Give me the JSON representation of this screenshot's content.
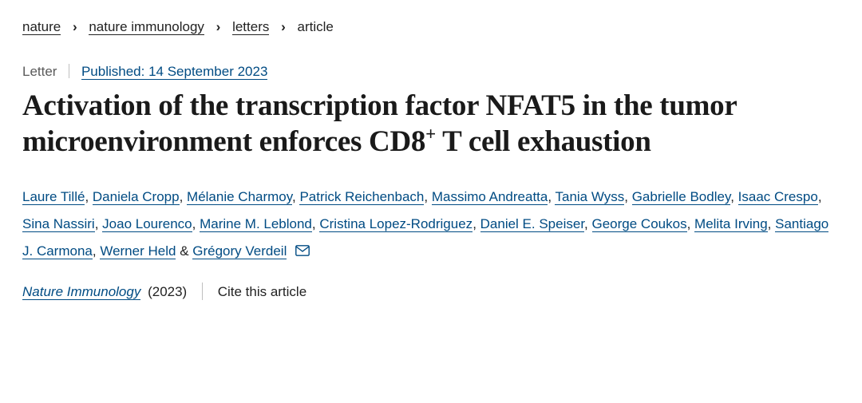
{
  "breadcrumb": {
    "items": [
      {
        "label": "nature",
        "link": true
      },
      {
        "label": "nature immunology",
        "link": true
      },
      {
        "label": "letters",
        "link": true
      },
      {
        "label": "article",
        "link": false
      }
    ]
  },
  "meta": {
    "category": "Letter",
    "published_label": "Published: 14 September 2023"
  },
  "title": {
    "pre": "Activation of the transcription factor NFAT5 in the tumor microenvironment enforces CD8",
    "sup": "+",
    "post": " T cell exhaustion"
  },
  "authors": [
    "Laure Tillé",
    "Daniela Cropp",
    "Mélanie Charmoy",
    "Patrick Reichenbach",
    "Massimo Andreatta",
    "Tania Wyss",
    "Gabrielle Bodley",
    "Isaac Crespo",
    "Sina Nassiri",
    "Joao Lourenco",
    "Marine M. Leblond",
    "Cristina Lopez-Rodriguez",
    "Daniel E. Speiser",
    "George Coukos",
    "Melita Irving",
    "Santiago J. Carmona",
    "Werner Held"
  ],
  "corresponding_author": "Grégory Verdeil",
  "citation": {
    "journal": "Nature Immunology",
    "year": "(2023)",
    "cite_label": "Cite this article"
  },
  "colors": {
    "link": "#004b83",
    "text": "#222222",
    "muted": "#5a5a5a"
  }
}
